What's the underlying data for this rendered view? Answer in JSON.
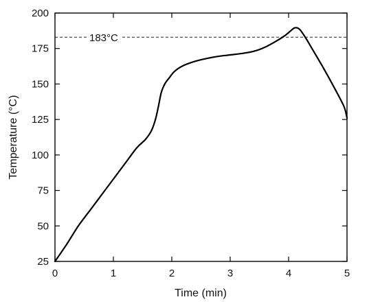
{
  "chart_data": {
    "type": "line",
    "title": "",
    "xlabel": "Time (min)",
    "ylabel": "Temperature (°C)",
    "xlim": [
      0,
      5
    ],
    "ylim": [
      25,
      200
    ],
    "x_ticks": [
      0,
      1,
      2,
      3,
      4,
      5
    ],
    "y_ticks": [
      25,
      50,
      75,
      100,
      125,
      150,
      175,
      200
    ],
    "x_tick_labels": [
      "0",
      "1",
      "2",
      "3",
      "4",
      "5"
    ],
    "y_tick_labels": [
      "25",
      "50",
      "75",
      "100",
      "125",
      "150",
      "175",
      "200"
    ],
    "grid": false,
    "legend": false,
    "reference_line": {
      "y": 183,
      "label": "183°C",
      "style": "dashed"
    },
    "series": [
      {
        "x": [
          0,
          0.2,
          0.4,
          0.6,
          0.8,
          1.0,
          1.2,
          1.4,
          1.55,
          1.65,
          1.72,
          1.77,
          1.82,
          1.88,
          1.95,
          2.05,
          2.2,
          2.4,
          2.6,
          2.8,
          3.0,
          3.2,
          3.4,
          3.6,
          3.8,
          3.95,
          4.05,
          4.1,
          4.15,
          4.2,
          4.3,
          4.4,
          4.6,
          4.8,
          4.95,
          5.0
        ],
        "y": [
          25,
          37,
          50,
          61,
          72,
          83,
          94,
          105,
          111,
          117,
          125,
          134,
          144,
          150,
          154,
          159,
          163,
          166,
          168,
          169.5,
          170.5,
          171.5,
          173,
          176,
          180.5,
          184.5,
          188,
          189.5,
          189.5,
          188,
          182,
          175,
          161,
          146,
          134,
          126
        ]
      }
    ],
    "color": "#000000"
  }
}
